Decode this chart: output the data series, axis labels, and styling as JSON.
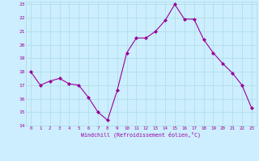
{
  "x": [
    0,
    1,
    2,
    3,
    4,
    5,
    6,
    7,
    8,
    9,
    10,
    11,
    12,
    13,
    14,
    15,
    16,
    17,
    18,
    19,
    20,
    21,
    22,
    23
  ],
  "y": [
    18.0,
    17.0,
    17.3,
    17.5,
    17.1,
    17.0,
    16.1,
    15.0,
    14.4,
    16.6,
    19.4,
    20.5,
    20.5,
    21.0,
    21.8,
    23.0,
    21.9,
    21.9,
    20.4,
    19.4,
    18.6,
    17.9,
    17.0,
    15.3
  ],
  "line_color": "#990099",
  "marker": "D",
  "marker_size": 2,
  "bg_color": "#cceeff",
  "grid_color": "#aadddd",
  "xlabel": "Windchill (Refroidissement éolien,°C)",
  "xlabel_color": "#990099",
  "tick_color": "#990099",
  "ylim": [
    14,
    23
  ],
  "xlim": [
    -0.5,
    23.5
  ],
  "yticks": [
    14,
    15,
    16,
    17,
    18,
    19,
    20,
    21,
    22,
    23
  ],
  "xticks": [
    0,
    1,
    2,
    3,
    4,
    5,
    6,
    7,
    8,
    9,
    10,
    11,
    12,
    13,
    14,
    15,
    16,
    17,
    18,
    19,
    20,
    21,
    22,
    23
  ]
}
